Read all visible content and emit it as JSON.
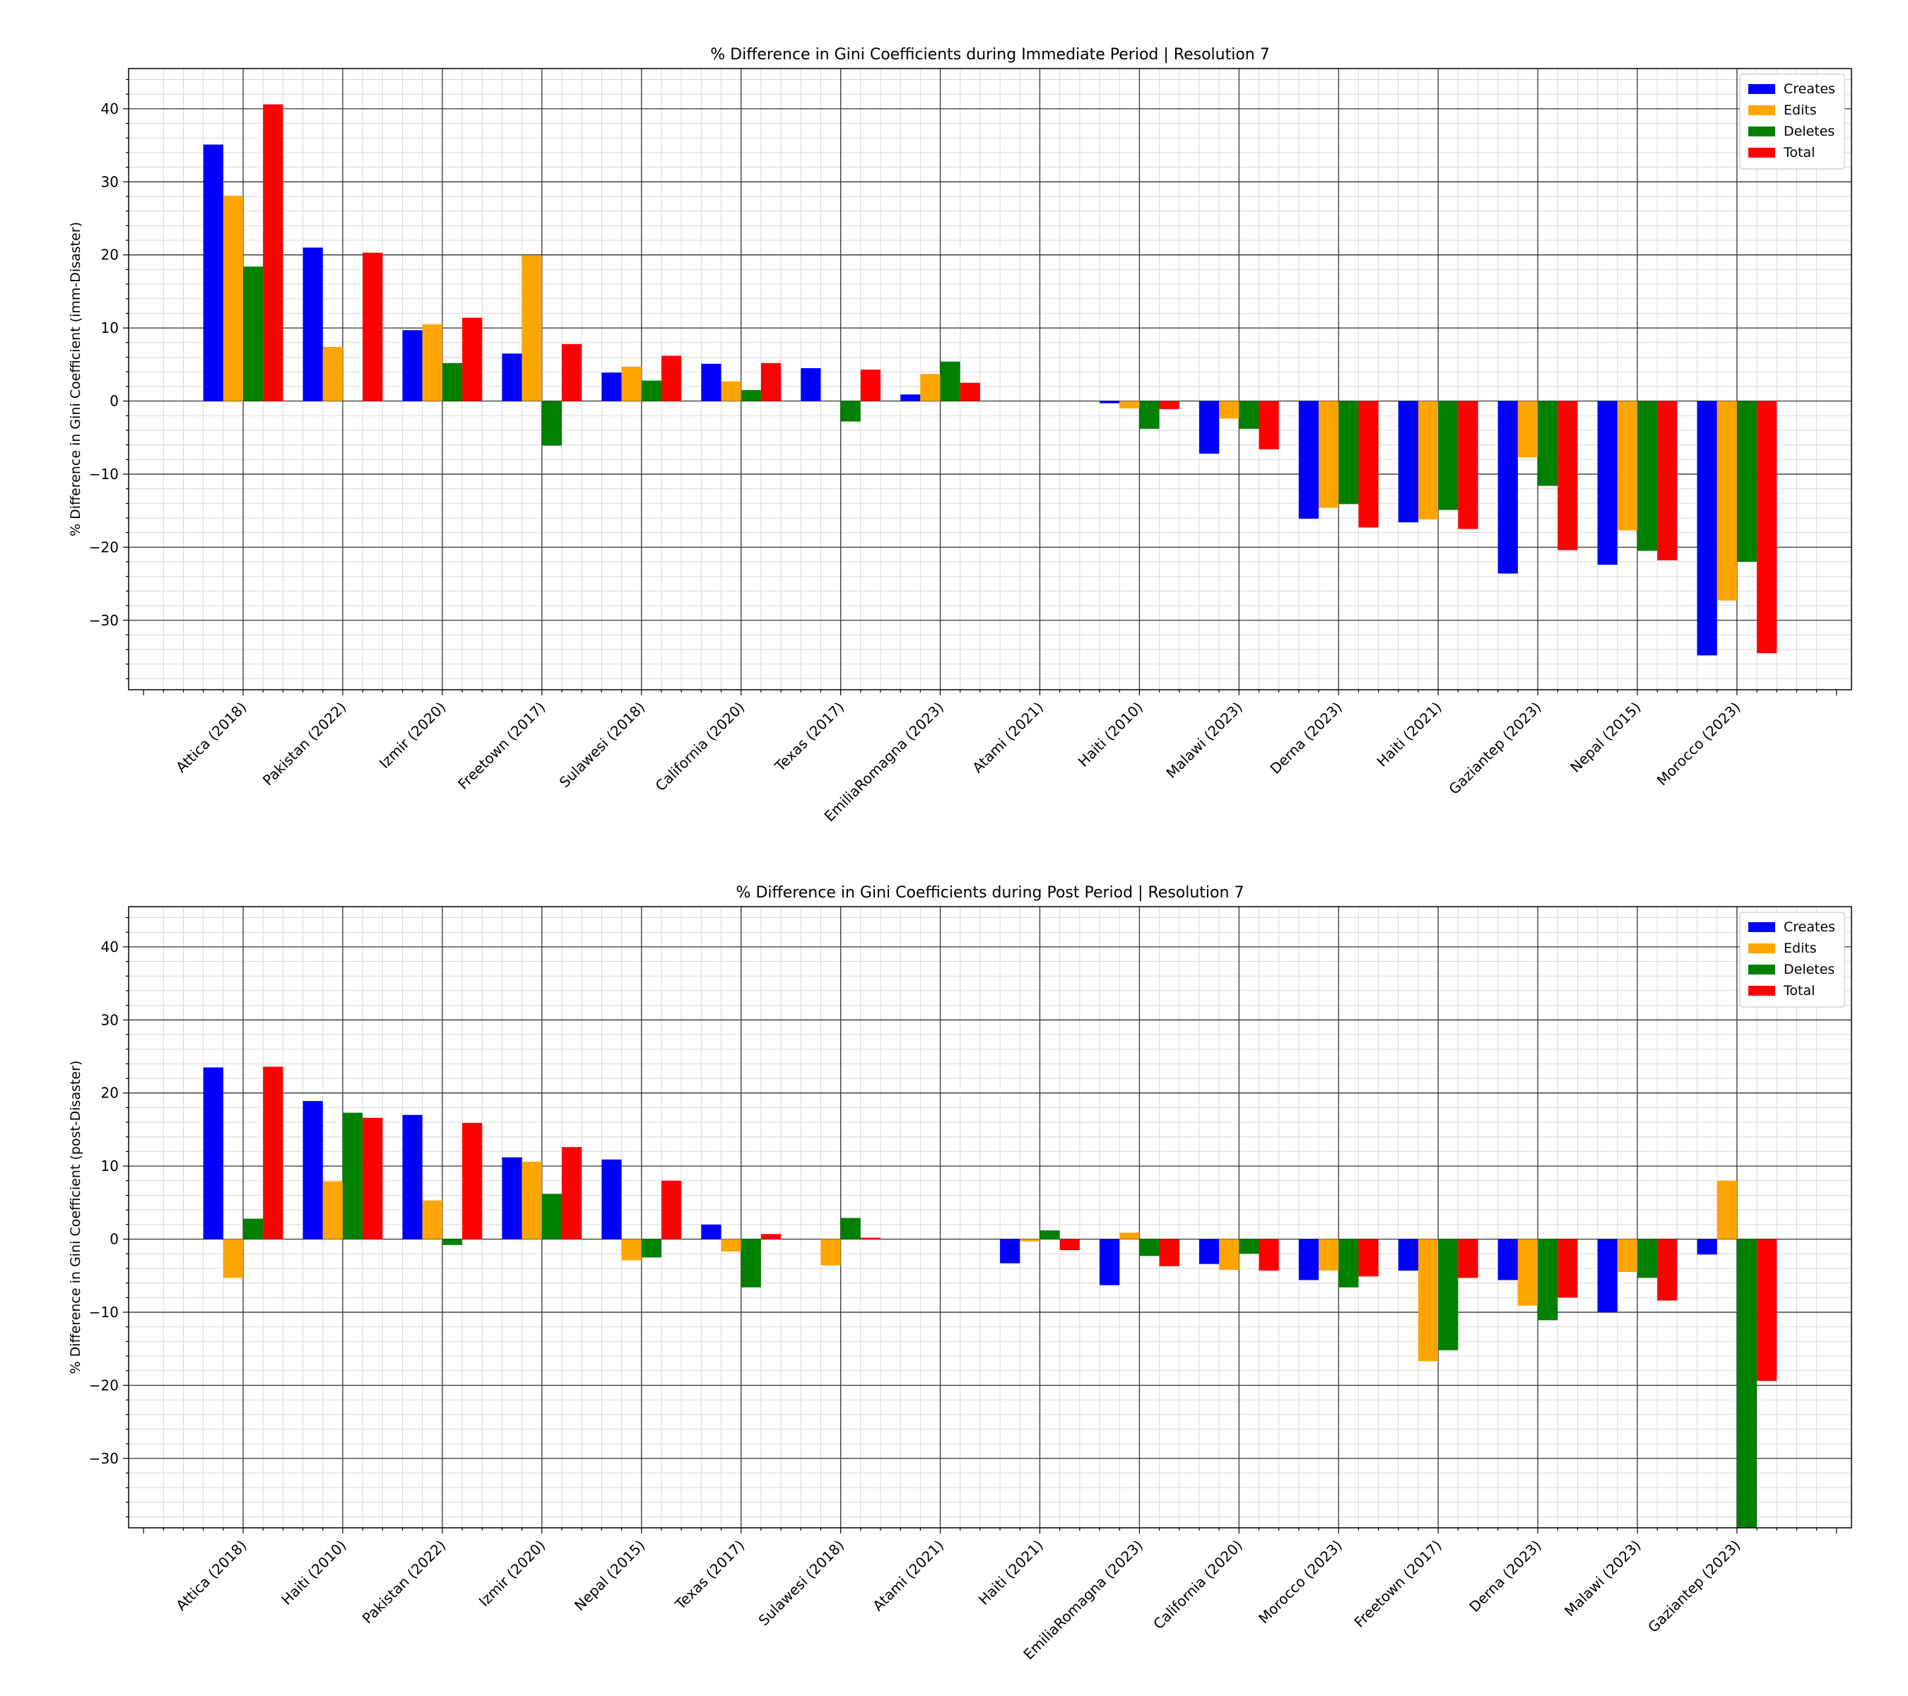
{
  "colors": {
    "Creates": "#0000ff",
    "Edits": "#ffa500",
    "Deletes": "#008000",
    "Total": "#ff0000"
  },
  "chart_data": [
    {
      "type": "bar",
      "title": "% Difference in Gini Coefficients during Immediate Period | Resolution 7",
      "xlabel": "",
      "ylabel": "% Difference in Gini Coefficient (imm-Disaster)",
      "ylim": [
        -39.5,
        45.5
      ],
      "yticks": [
        -30,
        -20,
        -10,
        0,
        10,
        20,
        30,
        40
      ],
      "grid": "major and minor",
      "legend": "top-right",
      "categories": [
        "Attica (2018)",
        "Pakistan (2022)",
        "Izmir (2020)",
        "Freetown (2017)",
        "Sulawesi (2018)",
        "California (2020)",
        "Texas (2017)",
        "EmiliaRomagna (2023)",
        "Atami (2021)",
        "Haiti (2010)",
        "Malawi (2023)",
        "Derna (2023)",
        "Haiti (2021)",
        "Gaziantep (2023)",
        "Nepal (2015)",
        "Morocco (2023)"
      ],
      "series": [
        {
          "name": "Creates",
          "values": [
            35.1,
            21.0,
            9.7,
            6.5,
            3.9,
            5.1,
            4.5,
            0.9,
            0,
            -0.3,
            -7.2,
            -16.1,
            -16.6,
            -23.6,
            -22.4,
            -34.8
          ]
        },
        {
          "name": "Edits",
          "values": [
            28.1,
            7.4,
            10.5,
            19.9,
            4.7,
            2.7,
            0,
            3.7,
            0,
            -1.0,
            -2.4,
            -14.6,
            -16.2,
            -7.7,
            -17.7,
            -27.3
          ]
        },
        {
          "name": "Deletes",
          "values": [
            18.4,
            0,
            5.2,
            -6.1,
            2.8,
            1.5,
            -2.8,
            5.4,
            0,
            -3.8,
            -3.8,
            -14.1,
            -14.9,
            -11.6,
            -20.5,
            -22.0
          ]
        },
        {
          "name": "Total",
          "values": [
            40.6,
            20.3,
            11.4,
            7.8,
            6.2,
            5.2,
            4.3,
            2.5,
            0,
            -1.1,
            -6.6,
            -17.3,
            -17.5,
            -20.4,
            -21.8,
            -34.5
          ]
        }
      ]
    },
    {
      "type": "bar",
      "title": "% Difference in Gini Coefficients during Post Period | Resolution 7",
      "xlabel": "",
      "ylabel": "% Difference in Gini Coefficient (post-Disaster)",
      "ylim": [
        -39.5,
        45.5
      ],
      "yticks": [
        -30,
        -20,
        -10,
        0,
        10,
        20,
        30,
        40
      ],
      "grid": "major and minor",
      "legend": "top-right",
      "categories": [
        "Attica (2018)",
        "Haiti (2010)",
        "Pakistan (2022)",
        "Izmir (2020)",
        "Nepal (2015)",
        "Texas (2017)",
        "Sulawesi (2018)",
        "Atami (2021)",
        "Haiti (2021)",
        "EmiliaRomagna (2023)",
        "California (2020)",
        "Morocco (2023)",
        "Freetown (2017)",
        "Derna (2023)",
        "Malawi (2023)",
        "Gaziantep (2023)"
      ],
      "series": [
        {
          "name": "Creates",
          "values": [
            23.5,
            18.9,
            17.0,
            11.2,
            10.9,
            2.0,
            0,
            0,
            -3.3,
            -6.3,
            -3.4,
            -5.6,
            -4.3,
            -5.6,
            -10.0,
            -2.1
          ]
        },
        {
          "name": "Edits",
          "values": [
            -5.3,
            7.9,
            5.3,
            10.6,
            -2.9,
            -1.7,
            -3.6,
            0,
            -0.3,
            0.9,
            -4.2,
            -4.3,
            -16.7,
            -9.1,
            -4.5,
            8.0
          ]
        },
        {
          "name": "Deletes",
          "values": [
            2.8,
            17.3,
            -0.8,
            6.2,
            -2.5,
            -6.6,
            2.9,
            0,
            1.2,
            -2.3,
            -2.0,
            -6.6,
            -15.2,
            -11.1,
            -5.3,
            -39.5
          ]
        },
        {
          "name": "Total",
          "values": [
            23.6,
            16.6,
            15.9,
            12.6,
            8.0,
            0.7,
            0.2,
            0,
            -1.5,
            -3.7,
            -4.3,
            -5.1,
            -5.3,
            -8.0,
            -8.4,
            -19.4
          ]
        }
      ]
    }
  ]
}
